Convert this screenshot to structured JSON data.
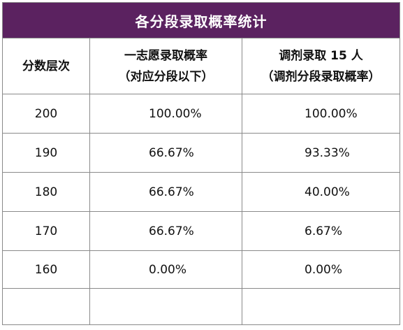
{
  "title": "各分段录取概率统计",
  "headers": {
    "col1": "分数层次",
    "col2_line1": "一志愿录取概率",
    "col2_line2": "（对应分段以下）",
    "col3_line1": "调剂录取 15 人",
    "col3_line2": "（调剂分段录取概率）"
  },
  "rows": [
    {
      "score": "200",
      "first_choice": "100.00%",
      "adjusted": "100.00%"
    },
    {
      "score": "190",
      "first_choice": "66.67%",
      "adjusted": "93.33%"
    },
    {
      "score": "180",
      "first_choice": "66.67%",
      "adjusted": "40.00%"
    },
    {
      "score": "170",
      "first_choice": "66.67%",
      "adjusted": "6.67%"
    },
    {
      "score": "160",
      "first_choice": "0.00%",
      "adjusted": "0.00%"
    },
    {
      "score": "",
      "first_choice": "",
      "adjusted": ""
    }
  ],
  "colors": {
    "header_bg": "#5b2260",
    "header_text": "#ffffff",
    "border": "#8a8a8a"
  }
}
